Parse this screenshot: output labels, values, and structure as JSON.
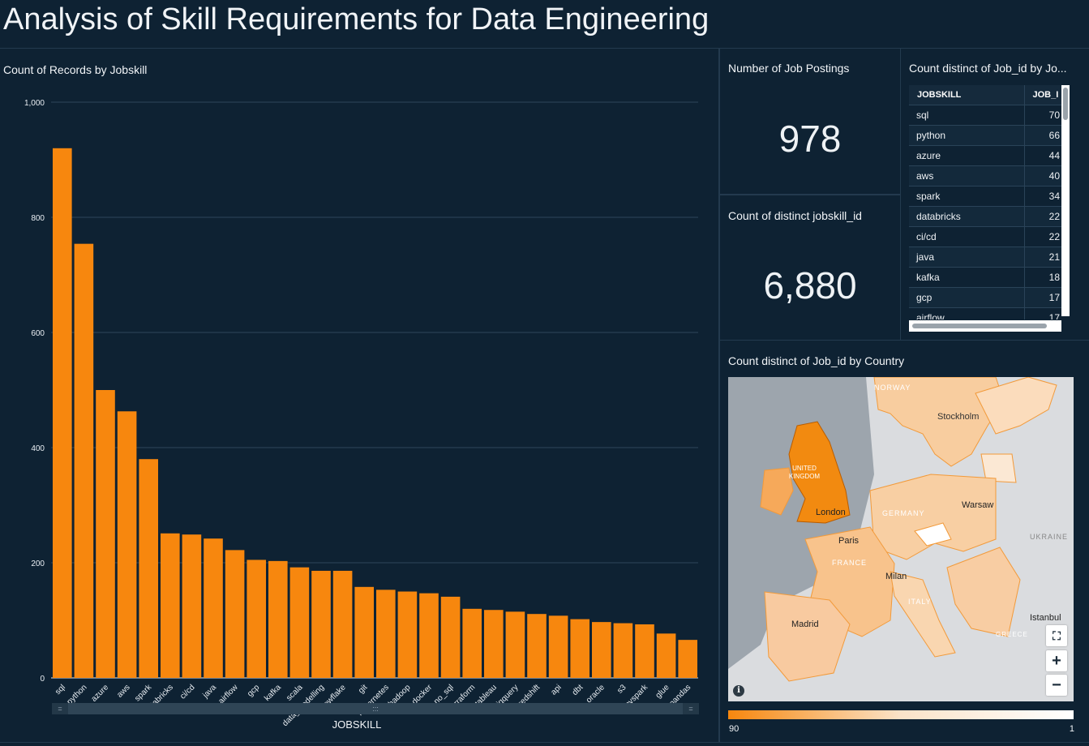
{
  "dashboard": {
    "title": "Analysis of Skill Requirements for Data Engineering"
  },
  "visuals": {
    "bar": {
      "title": "Count of Records by Jobskill",
      "x_axis_title": "JOBSKILL"
    },
    "kpi_postings": {
      "title": "Number of Job Postings",
      "value": "978"
    },
    "kpi_skill_ids": {
      "title": "Count of distinct jobskill_id",
      "value": "6,880"
    },
    "table": {
      "title": "Count distinct of Job_id by Jo...",
      "columns": [
        "JOBSKILL",
        "JOB_I"
      ],
      "rows": [
        [
          "sql",
          "70"
        ],
        [
          "python",
          "66"
        ],
        [
          "azure",
          "44"
        ],
        [
          "aws",
          "40"
        ],
        [
          "spark",
          "34"
        ],
        [
          "databricks",
          "22"
        ],
        [
          "ci/cd",
          "22"
        ],
        [
          "java",
          "21"
        ],
        [
          "kafka",
          "18"
        ],
        [
          "gcp",
          "17"
        ],
        [
          "airflow",
          "17"
        ]
      ]
    },
    "map": {
      "title": "Count distinct of Job_id by Country",
      "legend_min": "90",
      "legend_max": "1",
      "labels": {
        "norway": "NORWAY",
        "stockholm": "Stockholm",
        "uk": "UNITED KINGDOM",
        "london": "London",
        "germany": "GERMANY",
        "warsaw": "Warsaw",
        "ukraine": "UKRAINE",
        "paris": "Paris",
        "france": "FRANCE",
        "milan": "Milan",
        "italy": "ITALY",
        "madrid": "Madrid",
        "istanbul": "Istanbul",
        "greece": "GREECE"
      },
      "colors": {
        "high": "#f7870e",
        "low": "#ffffff"
      }
    }
  },
  "chart_data": {
    "type": "bar",
    "title": "Count of Records by Jobskill",
    "xlabel": "JOBSKILL",
    "ylabel": "",
    "ylim": [
      0,
      1000
    ],
    "yticks": [
      "0",
      "200",
      "400",
      "600",
      "800",
      "1,000"
    ],
    "grid": true,
    "bar_color": "#f7870e",
    "categories": [
      "sql",
      "python",
      "azure",
      "aws",
      "spark",
      "databricks",
      "ci/cd",
      "java",
      "airflow",
      "gcp",
      "kafka",
      "scala",
      "data_modelling",
      "snowflake",
      "git",
      "kubernetes",
      "hadoop",
      "docker",
      "no_sql",
      "terraform",
      "tableau",
      "bigquery",
      "redshift",
      "api",
      "dbt",
      "oracle",
      "s3",
      "pyspark",
      "glue",
      "pandas"
    ],
    "values": [
      920,
      754,
      500,
      463,
      380,
      251,
      249,
      242,
      222,
      205,
      203,
      192,
      186,
      186,
      158,
      153,
      150,
      147,
      141,
      120,
      118,
      115,
      111,
      108,
      102,
      97,
      95,
      93,
      77,
      66
    ]
  }
}
